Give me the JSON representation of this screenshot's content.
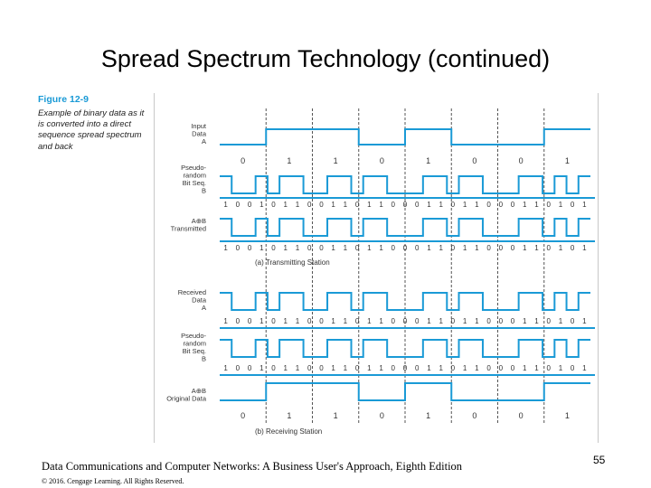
{
  "slide": {
    "title": "Spread Spectrum Technology (continued)",
    "page_number": "55"
  },
  "figure": {
    "number": "Figure 12-9",
    "caption": "Example of binary data as it is converted into a direct sequence spread spectrum and back"
  },
  "colors": {
    "waveform": "#1a9ad6",
    "rule": "#1a9ad6",
    "text": "#333333"
  },
  "rows": [
    {
      "label_lines": [
        "Input",
        "Data",
        "A"
      ],
      "bits": "01101001",
      "type": "data"
    },
    {
      "label_lines": [
        "Pseudo-",
        "random",
        "Bit Seq.",
        "B"
      ],
      "bits": "1001011001101100011011000110101",
      "type": "chip"
    },
    {
      "label_lines": [
        "A⊕B",
        "Transmitted"
      ],
      "bits": "1001011001101100011011000110101",
      "type": "chip"
    },
    {
      "label_lines": [
        "Received",
        "Data",
        "A"
      ],
      "bits": "1001011001101100011011000110101",
      "type": "chip"
    },
    {
      "label_lines": [
        "Pseudo-",
        "random",
        "Bit Seq.",
        "B"
      ],
      "bits": "1001011001101100011011000110101",
      "type": "chip"
    },
    {
      "label_lines": [
        "A⊕B",
        "Original Data"
      ],
      "bits": "01101001",
      "type": "data"
    }
  ],
  "sections": [
    {
      "label": "(a)  Transmitting Station"
    },
    {
      "label": "(b)  Receiving Station"
    }
  ],
  "footer": {
    "main": "Data Communications and Computer Networks: A Business User's Approach, Eighth Edition",
    "copyright": "© 2016. Cengage Learning. All Rights Reserved."
  }
}
